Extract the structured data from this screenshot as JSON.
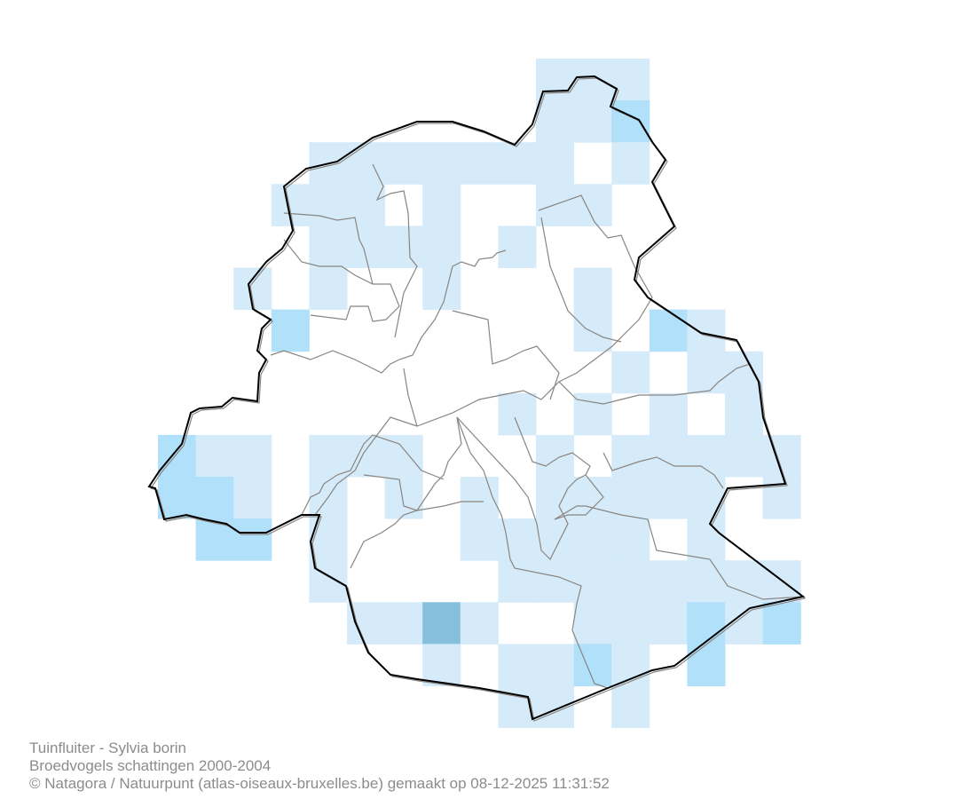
{
  "caption": {
    "species": "Tuinfluiter - Sylvia borin",
    "dataset": "Broedvogels schattingen 2000-2004",
    "credit": "© Natagora / Natuurpunt (atlas-oiseaux-bruxelles.be) gemaakt op 08-12-2025 11:31:52"
  },
  "colors": {
    "level1": "#d5ebfa",
    "level2": "#b0e0fa",
    "level3": "#86c0dc",
    "region_border": "#000000",
    "municipality_border": "#8a8580"
  },
  "grid": {
    "legend": "0 = empty, 1 = light, 2 = medium, 3 = dark",
    "rows": [
      [
        0,
        0,
        0,
        0,
        0,
        0,
        0,
        0,
        0,
        0,
        1,
        1,
        1,
        0,
        0,
        0,
        0
      ],
      [
        0,
        0,
        0,
        0,
        0,
        0,
        0,
        0,
        0,
        0,
        1,
        1,
        2,
        0,
        0,
        0,
        0
      ],
      [
        0,
        0,
        0,
        0,
        1,
        1,
        1,
        1,
        1,
        1,
        1,
        0,
        1,
        0,
        0,
        0,
        0
      ],
      [
        0,
        0,
        0,
        1,
        1,
        1,
        0,
        1,
        0,
        0,
        1,
        1,
        0,
        0,
        0,
        0,
        0
      ],
      [
        0,
        0,
        0,
        0,
        1,
        1,
        1,
        1,
        0,
        1,
        0,
        0,
        0,
        0,
        0,
        0,
        0
      ],
      [
        0,
        0,
        1,
        0,
        1,
        0,
        0,
        1,
        0,
        0,
        0,
        1,
        0,
        0,
        0,
        0,
        0
      ],
      [
        0,
        0,
        0,
        2,
        0,
        0,
        0,
        0,
        0,
        0,
        0,
        1,
        0,
        2,
        1,
        0,
        0
      ],
      [
        0,
        0,
        0,
        0,
        0,
        0,
        0,
        0,
        0,
        0,
        0,
        0,
        1,
        0,
        1,
        1,
        0
      ],
      [
        0,
        0,
        0,
        0,
        0,
        0,
        0,
        0,
        0,
        1,
        0,
        1,
        0,
        1,
        0,
        1,
        0
      ],
      [
        2,
        1,
        1,
        0,
        1,
        1,
        1,
        0,
        0,
        0,
        1,
        0,
        1,
        1,
        1,
        1,
        1
      ],
      [
        2,
        2,
        1,
        0,
        1,
        0,
        1,
        0,
        1,
        0,
        1,
        1,
        1,
        1,
        1,
        0,
        1
      ],
      [
        0,
        2,
        2,
        0,
        1,
        0,
        0,
        0,
        1,
        1,
        1,
        1,
        1,
        0,
        1,
        0,
        0
      ],
      [
        0,
        0,
        0,
        0,
        1,
        0,
        0,
        0,
        0,
        1,
        1,
        1,
        1,
        1,
        1,
        1,
        1
      ],
      [
        0,
        0,
        0,
        0,
        0,
        1,
        1,
        3,
        1,
        0,
        0,
        1,
        1,
        1,
        2,
        1,
        2
      ],
      [
        0,
        0,
        0,
        0,
        0,
        0,
        0,
        1,
        0,
        1,
        1,
        2,
        1,
        0,
        2,
        0,
        0
      ],
      [
        0,
        0,
        0,
        0,
        0,
        0,
        0,
        0,
        0,
        1,
        1,
        0,
        1,
        0,
        0,
        0,
        0
      ]
    ]
  }
}
